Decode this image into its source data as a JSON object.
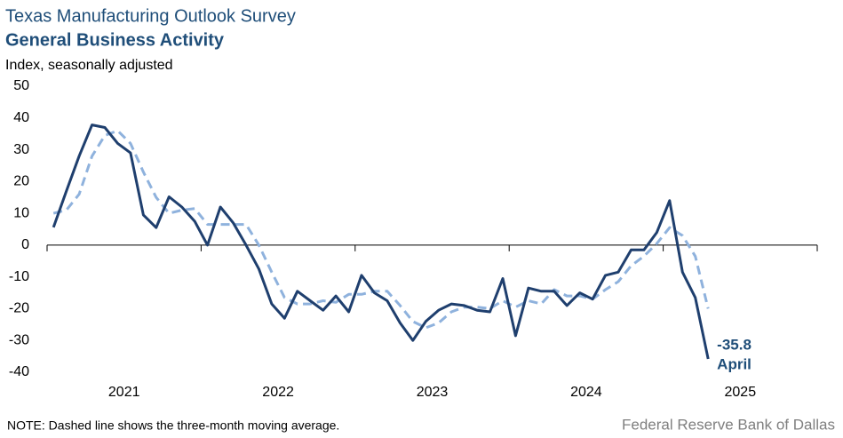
{
  "chart_data": {
    "type": "line",
    "title": "Texas Manufacturing Outlook Survey",
    "subtitle": "General Business Activity",
    "y_label": "Index, seasonally adjusted",
    "note": "NOTE: Dashed line shows the three-month  moving average.",
    "source": "Federal Reserve Bank of Dallas",
    "annotation": "April",
    "xlabels": [
      "2021",
      "2022",
      "2023",
      "2024",
      "2025"
    ],
    "ylim": [
      -40,
      50
    ],
    "yticks": [
      -40,
      -30,
      -20,
      -10,
      0,
      10,
      20,
      30,
      40,
      50
    ],
    "series": [
      {
        "color": "#1f3f6e",
        "dash": false,
        "values": [
          5.6,
          17,
          28,
          37.8,
          37,
          32,
          29,
          9.5,
          5.5,
          15.2,
          12,
          7.5,
          0,
          12,
          7,
          0,
          -7.5,
          -18.5,
          -23,
          -14.5,
          -17.5,
          -20.5,
          -16,
          -21,
          -9.5,
          -15,
          -17.5,
          -24.5,
          -30,
          -24,
          -20.5,
          -18.5,
          -19,
          -20.5,
          -21,
          -10.5,
          -28.5,
          -13.5,
          -14.5,
          -14.5,
          -19,
          -15,
          -17,
          -9.5,
          -8.5,
          -1.5,
          -1.5,
          4,
          14,
          -8.5,
          -16.5,
          -35.8
        ]
      },
      {
        "color": "#8fb2dd",
        "dash": true,
        "values": [
          10,
          11,
          16,
          28,
          34.5,
          36,
          32,
          23,
          15,
          10,
          11,
          11.5,
          6.5,
          6.5,
          6.5,
          6.5,
          0,
          -8.5,
          -16.5,
          -18.5,
          -18.5,
          -17.5,
          -18,
          -15.5,
          -15.5,
          -14.5,
          -14.5,
          -19,
          -24,
          -26,
          -24.5,
          -21,
          -19.5,
          -19.5,
          -20,
          -17.5,
          -19.5,
          -17.5,
          -18.5,
          -14,
          -16,
          -16,
          -17,
          -14,
          -11.5,
          -6.5,
          -3.5,
          0.5,
          5.5,
          3,
          -3.5,
          -20
        ]
      }
    ]
  }
}
